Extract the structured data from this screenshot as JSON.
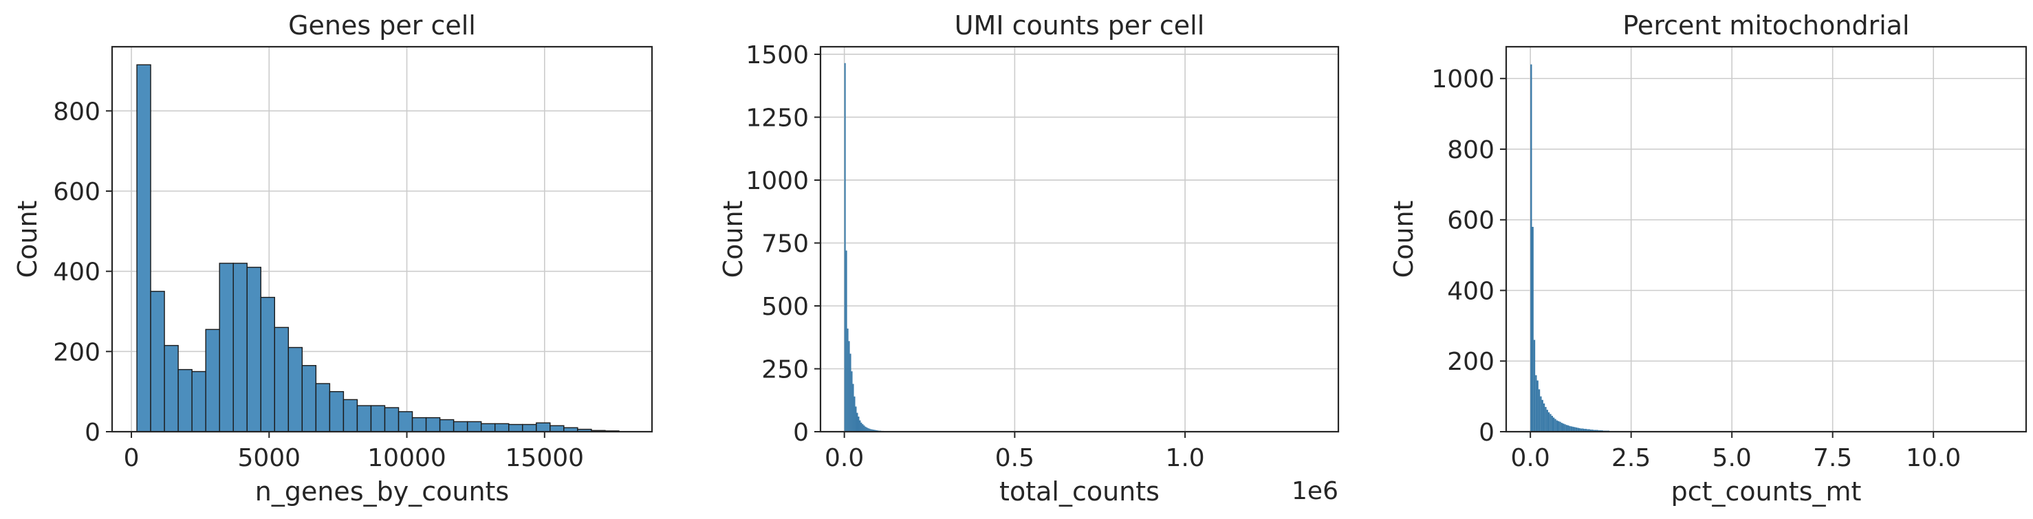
{
  "chart_data": [
    {
      "type": "bar",
      "title": "Genes per cell",
      "xlabel": "n_genes_by_counts",
      "ylabel": "Count",
      "xlim": [
        -700,
        18900
      ],
      "ylim": [
        0,
        960
      ],
      "xticks": [
        0,
        5000,
        10000,
        15000
      ],
      "xtick_labels": [
        "0",
        "5000",
        "10000",
        "15000"
      ],
      "yticks": [
        0,
        200,
        400,
        600,
        800
      ],
      "ytick_labels": [
        "0",
        "200",
        "400",
        "600",
        "800"
      ],
      "grid": true,
      "color": "#4c8ebd",
      "edgecolor": "#1a1a1a",
      "bin_start": 200,
      "bin_width": 500,
      "values": [
        915,
        350,
        215,
        155,
        150,
        255,
        420,
        420,
        410,
        335,
        260,
        210,
        165,
        120,
        100,
        80,
        65,
        65,
        60,
        50,
        35,
        35,
        30,
        25,
        25,
        20,
        20,
        18,
        18,
        22,
        15,
        10,
        6,
        3,
        2
      ]
    },
    {
      "type": "bar",
      "title": "UMI counts per cell",
      "xlabel": "total_counts",
      "ylabel": "Count",
      "offset_text": "1e6",
      "xlim": [
        -0.07,
        1.45
      ],
      "ylim": [
        0,
        1530
      ],
      "xticks": [
        0.0,
        0.5,
        1.0
      ],
      "xtick_labels": [
        "0.0",
        "0.5",
        "1.0"
      ],
      "yticks": [
        0,
        250,
        500,
        750,
        1000,
        1250,
        1500
      ],
      "ytick_labels": [
        "0",
        "250",
        "500",
        "750",
        "1000",
        "1250",
        "1500"
      ],
      "grid": true,
      "color": "#3a7aa8",
      "bin_start": 0.0,
      "bin_width": 0.004,
      "values": [
        1465,
        720,
        410,
        360,
        310,
        240,
        190,
        140,
        100,
        75,
        60,
        45,
        36,
        30,
        25,
        20,
        17,
        14,
        12,
        10,
        9,
        8,
        7,
        6,
        5,
        4,
        4,
        3,
        3,
        2,
        2,
        2,
        2,
        1,
        1,
        1,
        1,
        1,
        1,
        1,
        1,
        1,
        1,
        1,
        1
      ]
    },
    {
      "type": "bar",
      "title": "Percent mitochondrial",
      "xlabel": "pct_counts_mt",
      "ylabel": "Count",
      "xlim": [
        -0.6,
        12.3
      ],
      "ylim": [
        0,
        1090
      ],
      "xticks": [
        0.0,
        2.5,
        5.0,
        7.5,
        10.0
      ],
      "xtick_labels": [
        "0.0",
        "2.5",
        "5.0",
        "7.5",
        "10.0"
      ],
      "yticks": [
        0,
        200,
        400,
        600,
        800,
        1000
      ],
      "ytick_labels": [
        "0",
        "200",
        "400",
        "600",
        "800",
        "1000"
      ],
      "grid": true,
      "color": "#3a7aa8",
      "bin_start": 0.0,
      "bin_width": 0.04,
      "values": [
        1040,
        580,
        260,
        160,
        145,
        120,
        100,
        90,
        80,
        70,
        62,
        55,
        50,
        45,
        40,
        36,
        32,
        30,
        28,
        25,
        23,
        21,
        19,
        18,
        16,
        15,
        14,
        13,
        12,
        11,
        10,
        9,
        9,
        8,
        8,
        7,
        7,
        6,
        6,
        5,
        5,
        5,
        4,
        4,
        4,
        3,
        3,
        3,
        3,
        2,
        2,
        2,
        2,
        2,
        2,
        1,
        1,
        1,
        1,
        1,
        1,
        1,
        1,
        1,
        1,
        1,
        1,
        1,
        1,
        1
      ]
    }
  ]
}
